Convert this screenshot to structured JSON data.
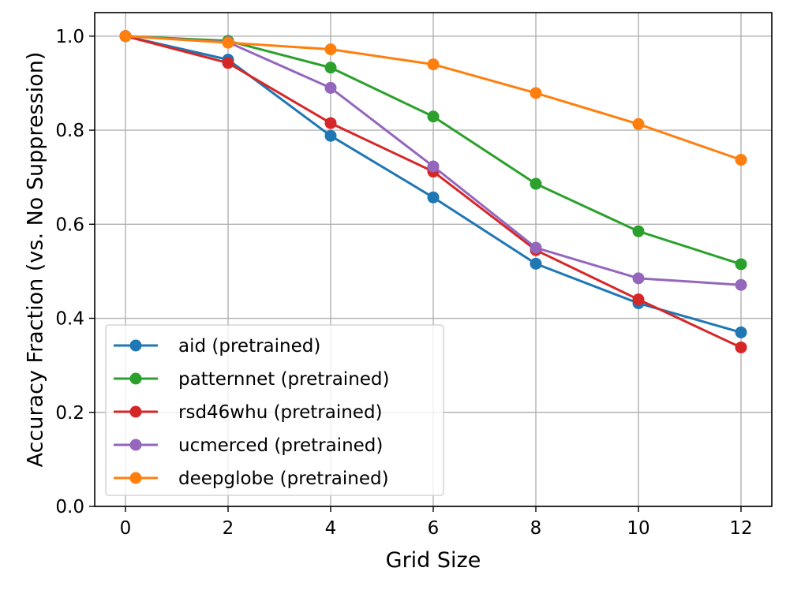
{
  "chart_data": {
    "type": "line",
    "title": "",
    "xlabel": "Grid Size",
    "ylabel": "Accuracy Fraction (vs. No Suppression)",
    "xlim": [
      -0.6,
      12.6
    ],
    "ylim": [
      0.0,
      1.05
    ],
    "grid": true,
    "legend_position": "lower-left",
    "x": [
      0,
      2,
      4,
      6,
      8,
      10,
      12
    ],
    "x_ticks": [
      0,
      2,
      4,
      6,
      8,
      10,
      12
    ],
    "x_tick_labels": [
      "0",
      "2",
      "4",
      "6",
      "8",
      "10",
      "12"
    ],
    "y_ticks": [
      0.0,
      0.2,
      0.4,
      0.6,
      0.8,
      1.0
    ],
    "y_tick_labels": [
      "0.0",
      "0.2",
      "0.4",
      "0.6",
      "0.8",
      "1.0"
    ],
    "series": [
      {
        "name": "aid (pretrained)",
        "color": "#1f77b4",
        "values": [
          1.0,
          0.95,
          0.788,
          0.657,
          0.516,
          0.432,
          0.37
        ]
      },
      {
        "name": "patternnet (pretrained)",
        "color": "#2ca02c",
        "values": [
          1.0,
          0.99,
          0.933,
          0.829,
          0.686,
          0.585,
          0.515
        ]
      },
      {
        "name": "rsd46whu (pretrained)",
        "color": "#d62728",
        "values": [
          1.0,
          0.943,
          0.815,
          0.712,
          0.545,
          0.44,
          0.338
        ]
      },
      {
        "name": "ucmerced (pretrained)",
        "color": "#9467bd",
        "values": [
          1.0,
          0.987,
          0.89,
          0.723,
          0.55,
          0.485,
          0.471
        ]
      },
      {
        "name": "deepglobe (pretrained)",
        "color": "#ff7f0e",
        "values": [
          1.0,
          0.986,
          0.972,
          0.94,
          0.879,
          0.813,
          0.737
        ]
      }
    ]
  }
}
